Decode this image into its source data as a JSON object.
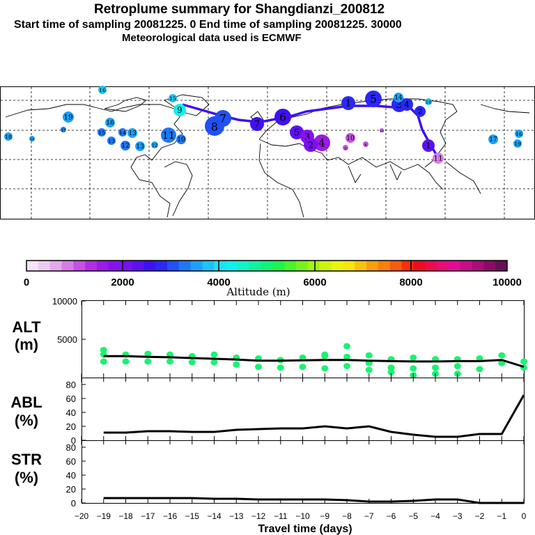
{
  "header": {
    "title": "Retroplume summary for Shangdianzi_200812",
    "line2": "Start time of sampling 20081225.     0     End time of sampling 20081225. 30000",
    "line3": "Meteorological data used is ECMWF"
  },
  "colorbar": {
    "ticks": [
      "0",
      "2000",
      "4000",
      "6000",
      "8000",
      "10000"
    ],
    "label": "Altitude (m)",
    "colors": [
      "#f6e3f8",
      "#eecbf2",
      "#e2a9ec",
      "#d47ee6",
      "#c552e4",
      "#b12ee6",
      "#9c1aea",
      "#8712ee",
      "#7a10ee",
      "#5d10f0",
      "#3f10f2",
      "#2a28f4",
      "#2050f6",
      "#1e78f8",
      "#1ea0fa",
      "#1ec2fa",
      "#1ee0fa",
      "#10f0ec",
      "#10f4c8",
      "#10f4a0",
      "#10f478",
      "#18f450",
      "#48f42a",
      "#78f41a",
      "#a4f412",
      "#ccf40e",
      "#eaf40c",
      "#f8e60c",
      "#f8c40c",
      "#f8a00c",
      "#f8800c",
      "#f85c0c",
      "#f8300c",
      "#ee0c20",
      "#ec0c4e",
      "#e80c78",
      "#e00c96",
      "#c80c8a",
      "#ac0c7a",
      "#8a0c66",
      "#6a0c58"
    ]
  },
  "map": {
    "labels": [
      "16",
      "15",
      "19",
      "18",
      "19",
      "17",
      "16",
      "15",
      "13",
      "14",
      "12",
      "13",
      "13",
      "12",
      "11",
      "10",
      "9",
      "8",
      "7",
      "7",
      "6",
      "5",
      "4",
      "3",
      "2",
      "1",
      "5",
      "3",
      "4",
      "2",
      "1",
      "14",
      "18",
      "17",
      "16",
      "19",
      "10",
      "8",
      "9",
      "10",
      "11"
    ]
  },
  "chart_data": [
    {
      "type": "scatter",
      "panel": "ALT",
      "ylabel": "ALT\n(m)",
      "ylim": [
        0,
        10000
      ],
      "yticks": [
        5000,
        10000
      ],
      "x": [
        -19,
        -18,
        -17,
        -16,
        -15,
        -14,
        -13,
        -12,
        -11,
        -10,
        -9,
        -8,
        -7,
        -6,
        -5,
        -4,
        -3,
        -2,
        -1,
        0
      ],
      "line": [
        2800,
        2800,
        2700,
        2650,
        2550,
        2450,
        2350,
        2200,
        2200,
        2250,
        2300,
        2300,
        2200,
        2150,
        2100,
        2100,
        2150,
        2150,
        2300,
        1400
      ],
      "points": [
        [
          -19,
          3600
        ],
        [
          -19,
          3000
        ],
        [
          -19,
          2100
        ],
        [
          -18,
          3000
        ],
        [
          -18,
          2100
        ],
        [
          -17,
          3100
        ],
        [
          -17,
          2100
        ],
        [
          -16,
          3000
        ],
        [
          -16,
          2100
        ],
        [
          -15,
          2800
        ],
        [
          -15,
          2000
        ],
        [
          -14,
          3000
        ],
        [
          -14,
          2000
        ],
        [
          -13,
          2600
        ],
        [
          -13,
          1700
        ],
        [
          -12,
          2500
        ],
        [
          -12,
          1400
        ],
        [
          -11,
          2300
        ],
        [
          -11,
          1300
        ],
        [
          -10,
          2600
        ],
        [
          -10,
          1400
        ],
        [
          -9,
          2800
        ],
        [
          -9,
          3000
        ],
        [
          -9,
          1200
        ],
        [
          -8,
          4100
        ],
        [
          -8,
          2700
        ],
        [
          -8,
          1500
        ],
        [
          -7,
          2900
        ],
        [
          -7,
          1900
        ],
        [
          -7,
          1000
        ],
        [
          -6,
          2400
        ],
        [
          -6,
          1300
        ],
        [
          -6,
          700
        ],
        [
          -5,
          2600
        ],
        [
          -5,
          1200
        ],
        [
          -5,
          300
        ],
        [
          -4,
          2400
        ],
        [
          -4,
          1300
        ],
        [
          -4,
          500
        ],
        [
          -3,
          2400
        ],
        [
          -3,
          1500
        ],
        [
          -3,
          500
        ],
        [
          -2,
          2500
        ],
        [
          -2,
          1100
        ],
        [
          -1,
          2900
        ],
        [
          -1,
          1900
        ],
        [
          0,
          2100
        ],
        [
          0,
          1300
        ]
      ]
    },
    {
      "type": "line",
      "panel": "ABL",
      "ylabel": "ABL\n(%)",
      "ylim": [
        0,
        90
      ],
      "yticks": [
        "0",
        "20",
        "40",
        "60",
        "80"
      ],
      "x": [
        -19,
        -18,
        -17,
        -16,
        -15,
        -14,
        -13,
        -12,
        -11,
        -10,
        -9,
        -8,
        -7,
        -6,
        -5,
        -4,
        -3,
        -2,
        -1,
        0
      ],
      "values": [
        11,
        11,
        13,
        13,
        12,
        12,
        15,
        16,
        17,
        17,
        20,
        17,
        20,
        12,
        8,
        5,
        5,
        9,
        9,
        65
      ]
    },
    {
      "type": "line",
      "panel": "STR",
      "ylabel": "STR\n(%)",
      "ylim": [
        0,
        90
      ],
      "yticks": [
        "0",
        "20",
        "40",
        "60",
        "80"
      ],
      "x": [
        -19,
        -18,
        -17,
        -16,
        -15,
        -14,
        -13,
        -12,
        -11,
        -10,
        -9,
        -8,
        -7,
        -6,
        -5,
        -4,
        -3,
        -2,
        -1,
        0
      ],
      "values": [
        7,
        7,
        7,
        7,
        7,
        6,
        6,
        5,
        5,
        5,
        5,
        4,
        2,
        2,
        3,
        5,
        5,
        0,
        0,
        0
      ]
    }
  ],
  "xaxis": {
    "label": "Travel time (days)",
    "ticks": [
      "−20",
      "−19",
      "−18",
      "−17",
      "−16",
      "−15",
      "−14",
      "−13",
      "−12",
      "−11",
      "−10",
      "−9",
      "−8",
      "−7",
      "−6",
      "−5",
      "−4",
      "−3",
      "−2",
      "−1",
      "0"
    ]
  }
}
